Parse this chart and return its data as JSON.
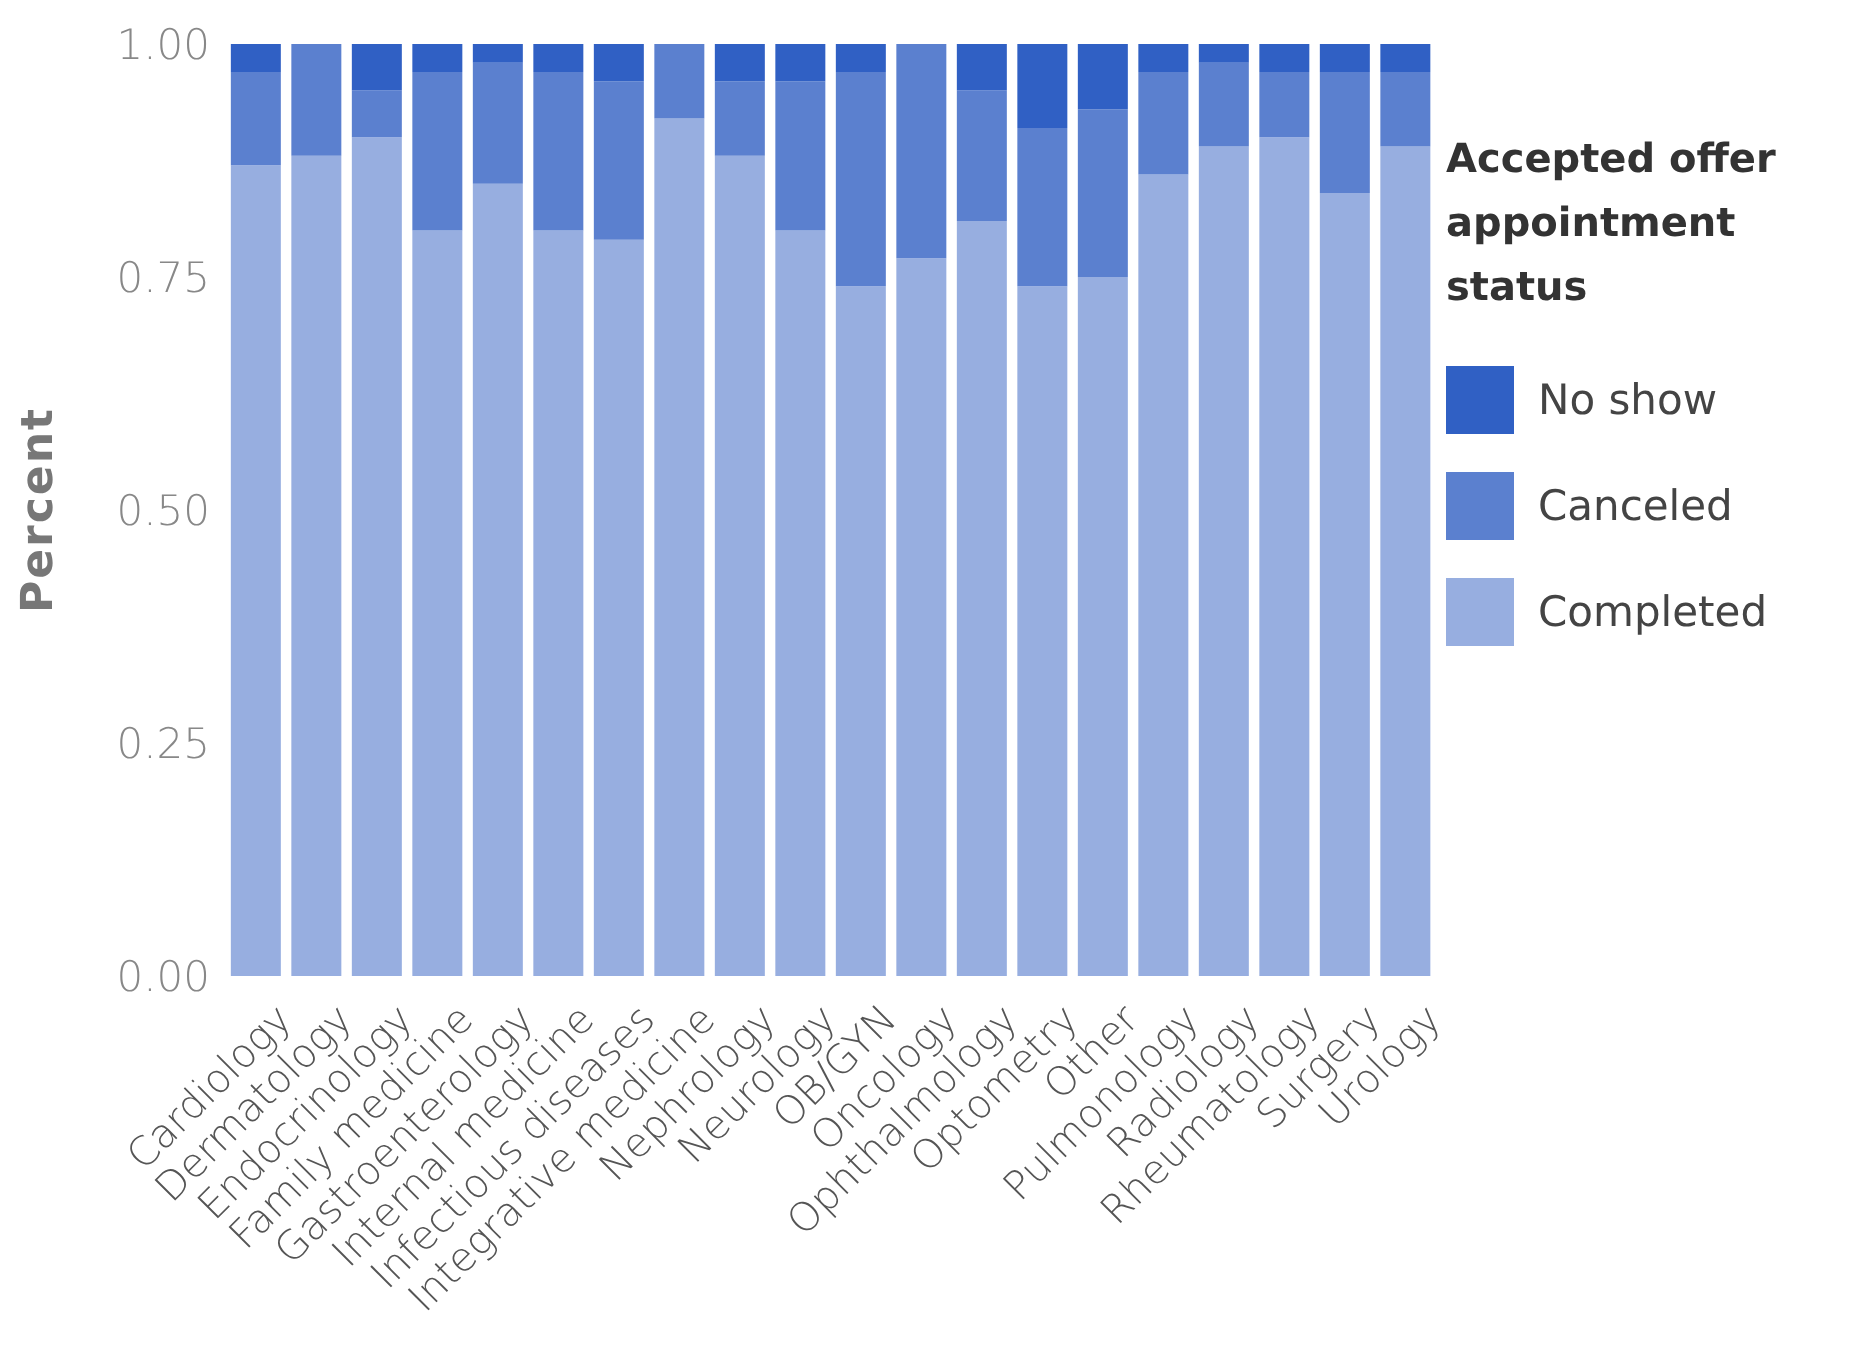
{
  "chart_data": {
    "type": "bar",
    "stacked": true,
    "ylabel": "Percent",
    "legend_title": "Accepted offer appointment status",
    "legend": "right",
    "grid": false,
    "categories": [
      "Cardiology",
      "Dermatology",
      "Endocrinology",
      "Family medicine",
      "Gastroenterology",
      "Internal medicine",
      "Infectious diseases",
      "Integrative medicine",
      "Nephrology",
      "Neurology",
      "OB/GYN",
      "Oncology",
      "Ophthalmology",
      "Optometry",
      "Other",
      "Pulmonology",
      "Radiology",
      "Rheumatology",
      "Surgery",
      "Urology"
    ],
    "ylim": [
      0,
      1
    ],
    "yticks": [
      {
        "value": 0,
        "label": "0.00"
      },
      {
        "value": 0.25,
        "label": "0.25"
      },
      {
        "value": 0.5,
        "label": "0.50"
      },
      {
        "value": 0.75,
        "label": "0.75"
      },
      {
        "value": 1,
        "label": "1.00"
      }
    ],
    "series": [
      {
        "name": "Completed",
        "color": "#97aee0",
        "values": [
          0.87,
          0.88,
          0.9,
          0.8,
          0.85,
          0.8,
          0.79,
          0.92,
          0.88,
          0.8,
          0.74,
          0.77,
          0.81,
          0.74,
          0.75,
          0.86,
          0.89,
          0.9,
          0.84,
          0.89
        ]
      },
      {
        "name": "Canceled",
        "color": "#5b80cf",
        "values": [
          0.1,
          0.12,
          0.05,
          0.17,
          0.13,
          0.17,
          0.17,
          0.08,
          0.08,
          0.16,
          0.23,
          0.23,
          0.14,
          0.17,
          0.18,
          0.11,
          0.09,
          0.07,
          0.13,
          0.08
        ]
      },
      {
        "name": "No show",
        "color": "#3060c4",
        "values": [
          0.03,
          0,
          0.05,
          0.03,
          0.02,
          0.03,
          0.04,
          0,
          0.04,
          0.04,
          0.03,
          0,
          0.05,
          0.09,
          0.07,
          0.03,
          0.02,
          0.03,
          0.03,
          0.03
        ]
      }
    ]
  }
}
